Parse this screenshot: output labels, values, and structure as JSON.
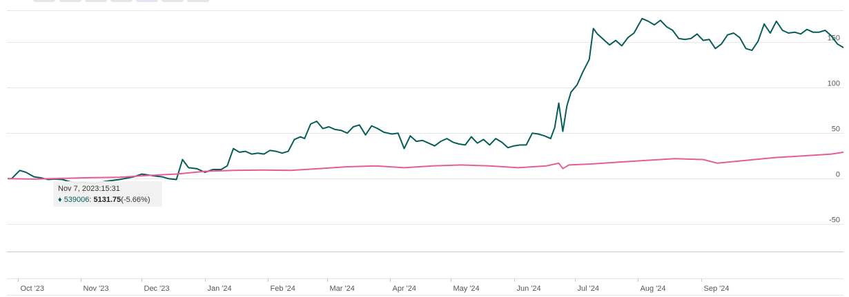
{
  "range_buttons": [
    {
      "selected": false
    },
    {
      "selected": false
    },
    {
      "selected": false
    },
    {
      "selected": false
    },
    {
      "selected": true
    },
    {
      "selected": false
    },
    {
      "selected": false
    }
  ],
  "colors": {
    "series_main": "#065c59",
    "series_compare": "#e85b99",
    "grid": "#e6e6e6",
    "zero_line": "#c8c8c8",
    "selected_button": "#e4e4f5"
  },
  "tooltip": {
    "date": "Nov 7, 2023:15:31",
    "marker": "♦",
    "symbol": "539006",
    "value": "5131.75",
    "change": "(-5.66%)"
  },
  "chart_data": {
    "type": "line",
    "y_axis": {
      "ticks": [
        150,
        100,
        50,
        0,
        -50
      ],
      "range": [
        -65,
        185
      ],
      "position": "right",
      "unit": "percent change"
    },
    "x_axis": {
      "ticks": [
        "Oct '23",
        "Nov '23",
        "Dec '23",
        "Jan '24",
        "Feb '24",
        "Mar '24",
        "Apr '24",
        "May '24",
        "Jun '24",
        "Jul '24",
        "Aug '24",
        "Sep '24"
      ]
    },
    "grid": true,
    "legend": "none",
    "series": [
      {
        "color": "#065c59",
        "points": [
          [
            "2023-09-26",
            0
          ],
          [
            "2023-09-28",
            0
          ],
          [
            "2023-10-02",
            9
          ],
          [
            "2023-10-05",
            7
          ],
          [
            "2023-10-09",
            2
          ],
          [
            "2023-10-12",
            1
          ],
          [
            "2023-10-16",
            -1
          ],
          [
            "2023-10-19",
            -0.5
          ],
          [
            "2023-10-23",
            -1
          ],
          [
            "2023-10-26",
            -3
          ],
          [
            "2023-10-30",
            -5
          ],
          [
            "2023-11-02",
            -4
          ],
          [
            "2023-11-07",
            -5.66
          ],
          [
            "2023-11-13",
            -3
          ],
          [
            "2023-11-20",
            -1
          ],
          [
            "2023-11-27",
            2
          ],
          [
            "2023-12-01",
            5
          ],
          [
            "2023-12-04",
            4
          ],
          [
            "2023-12-07",
            3
          ],
          [
            "2023-12-11",
            2
          ],
          [
            "2023-12-14",
            0
          ],
          [
            "2023-12-18",
            -1
          ],
          [
            "2023-12-21",
            21
          ],
          [
            "2023-12-24",
            12
          ],
          [
            "2023-12-28",
            11
          ],
          [
            "2024-01-01",
            7
          ],
          [
            "2024-01-05",
            10
          ],
          [
            "2024-01-09",
            10
          ],
          [
            "2024-01-12",
            14
          ],
          [
            "2024-01-15",
            33
          ],
          [
            "2024-01-18",
            29
          ],
          [
            "2024-01-21",
            30
          ],
          [
            "2024-01-24",
            27
          ],
          [
            "2024-01-27",
            28
          ],
          [
            "2024-01-30",
            27
          ],
          [
            "2024-02-02",
            31
          ],
          [
            "2024-02-05",
            30
          ],
          [
            "2024-02-08",
            28
          ],
          [
            "2024-02-11",
            30
          ],
          [
            "2024-02-14",
            43
          ],
          [
            "2024-02-17",
            46
          ],
          [
            "2024-02-19",
            44
          ],
          [
            "2024-02-22",
            60
          ],
          [
            "2024-02-25",
            63
          ],
          [
            "2024-02-28",
            55
          ],
          [
            "2024-03-02",
            57
          ],
          [
            "2024-03-05",
            54
          ],
          [
            "2024-03-08",
            53
          ],
          [
            "2024-03-11",
            50
          ],
          [
            "2024-03-14",
            57
          ],
          [
            "2024-03-17",
            59
          ],
          [
            "2024-03-20",
            48
          ],
          [
            "2024-03-23",
            58
          ],
          [
            "2024-03-26",
            55
          ],
          [
            "2024-03-29",
            51
          ],
          [
            "2024-04-02",
            49
          ],
          [
            "2024-04-05",
            50
          ],
          [
            "2024-04-08",
            33
          ],
          [
            "2024-04-11",
            47
          ],
          [
            "2024-04-14",
            41
          ],
          [
            "2024-04-17",
            42
          ],
          [
            "2024-04-20",
            39
          ],
          [
            "2024-04-23",
            36
          ],
          [
            "2024-04-26",
            41
          ],
          [
            "2024-04-29",
            44
          ],
          [
            "2024-05-02",
            40
          ],
          [
            "2024-05-05",
            38
          ],
          [
            "2024-05-08",
            37
          ],
          [
            "2024-05-11",
            46
          ],
          [
            "2024-05-14",
            39
          ],
          [
            "2024-05-17",
            43
          ],
          [
            "2024-05-20",
            37
          ],
          [
            "2024-05-23",
            44
          ],
          [
            "2024-05-26",
            40
          ],
          [
            "2024-05-29",
            34
          ],
          [
            "2024-06-01",
            36
          ],
          [
            "2024-06-04",
            37
          ],
          [
            "2024-06-07",
            37
          ],
          [
            "2024-06-10",
            50
          ],
          [
            "2024-06-13",
            49
          ],
          [
            "2024-06-16",
            47
          ],
          [
            "2024-06-19",
            44
          ],
          [
            "2024-06-21",
            56
          ],
          [
            "2024-06-23",
            83
          ],
          [
            "2024-06-25",
            52
          ],
          [
            "2024-06-27",
            80
          ],
          [
            "2024-06-29",
            95
          ],
          [
            "2024-07-02",
            103
          ],
          [
            "2024-07-05",
            118
          ],
          [
            "2024-07-08",
            131
          ],
          [
            "2024-07-10",
            165
          ],
          [
            "2024-07-12",
            159
          ],
          [
            "2024-07-15",
            153
          ],
          [
            "2024-07-18",
            147
          ],
          [
            "2024-07-21",
            152
          ],
          [
            "2024-07-24",
            146
          ],
          [
            "2024-07-27",
            155
          ],
          [
            "2024-07-30",
            160
          ],
          [
            "2024-08-01",
            168
          ],
          [
            "2024-08-03",
            176
          ],
          [
            "2024-08-06",
            173
          ],
          [
            "2024-08-09",
            169
          ],
          [
            "2024-08-12",
            174
          ],
          [
            "2024-08-15",
            167
          ],
          [
            "2024-08-18",
            163
          ],
          [
            "2024-08-21",
            154
          ],
          [
            "2024-08-24",
            153
          ],
          [
            "2024-08-27",
            154
          ],
          [
            "2024-08-30",
            159
          ],
          [
            "2024-09-02",
            152
          ],
          [
            "2024-09-05",
            153
          ],
          [
            "2024-09-08",
            143
          ],
          [
            "2024-09-11",
            148
          ],
          [
            "2024-09-14",
            158
          ],
          [
            "2024-09-17",
            160
          ],
          [
            "2024-09-20",
            155
          ],
          [
            "2024-09-23",
            143
          ],
          [
            "2024-09-26",
            141
          ],
          [
            "2024-09-29",
            151
          ],
          [
            "2024-10-02",
            170
          ],
          [
            "2024-10-05",
            160
          ],
          [
            "2024-10-08",
            173
          ],
          [
            "2024-10-11",
            163
          ],
          [
            "2024-10-14",
            160
          ],
          [
            "2024-10-17",
            161
          ],
          [
            "2024-10-20",
            159
          ],
          [
            "2024-10-23",
            164
          ],
          [
            "2024-10-26",
            161
          ],
          [
            "2024-10-29",
            161
          ],
          [
            "2024-11-01",
            163
          ],
          [
            "2024-11-04",
            157
          ],
          [
            "2024-11-07",
            148
          ],
          [
            "2024-11-10",
            144
          ]
        ]
      },
      {
        "color": "#e85b99",
        "points": [
          [
            "2023-09-26",
            0
          ],
          [
            "2023-10-09",
            -0.5
          ],
          [
            "2023-10-23",
            0.2
          ],
          [
            "2023-11-07",
            1.1
          ],
          [
            "2023-11-20",
            1.5
          ],
          [
            "2023-12-04",
            3.5
          ],
          [
            "2023-12-18",
            5
          ],
          [
            "2024-01-01",
            8
          ],
          [
            "2024-01-15",
            9
          ],
          [
            "2024-01-29",
            9.5
          ],
          [
            "2024-02-12",
            9
          ],
          [
            "2024-02-26",
            11
          ],
          [
            "2024-03-11",
            13
          ],
          [
            "2024-03-25",
            14
          ],
          [
            "2024-04-08",
            12
          ],
          [
            "2024-04-22",
            14
          ],
          [
            "2024-05-06",
            15
          ],
          [
            "2024-05-20",
            14
          ],
          [
            "2024-06-03",
            12
          ],
          [
            "2024-06-17",
            14
          ],
          [
            "2024-06-23",
            17
          ],
          [
            "2024-06-25",
            11
          ],
          [
            "2024-06-28",
            15
          ],
          [
            "2024-07-08",
            16
          ],
          [
            "2024-07-22",
            18
          ],
          [
            "2024-08-05",
            20
          ],
          [
            "2024-08-19",
            22
          ],
          [
            "2024-09-02",
            21
          ],
          [
            "2024-09-09",
            17
          ],
          [
            "2024-09-23",
            20
          ],
          [
            "2024-10-07",
            23
          ],
          [
            "2024-10-21",
            25
          ],
          [
            "2024-11-04",
            27
          ],
          [
            "2024-11-10",
            29
          ]
        ]
      }
    ]
  }
}
